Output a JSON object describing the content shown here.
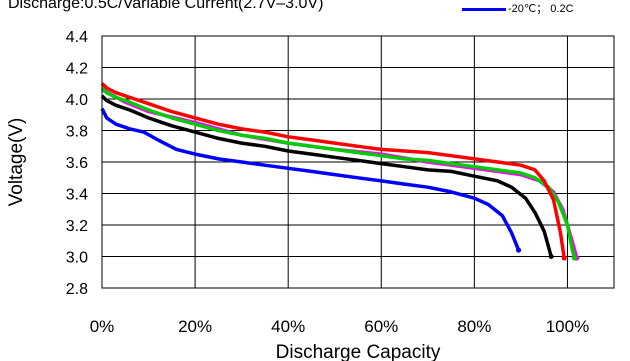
{
  "chart_data": {
    "type": "line",
    "title": "Discharge:0.5C/Variable Current(2.7V–3.0V)",
    "xlabel": "Discharge Capacity",
    "ylabel": "Voltage(V)",
    "xlim": [
      0,
      110
    ],
    "ylim": [
      2.8,
      4.4
    ],
    "x_ticks": [
      "0%",
      "20%",
      "40%",
      "60%",
      "80%",
      "100%"
    ],
    "y_ticks": [
      "2.8",
      "3.0",
      "3.2",
      "3.4",
      "3.6",
      "3.8",
      "4.0",
      "4.2",
      "4.4"
    ],
    "grid": true,
    "legend": {
      "position": "top-right",
      "entries": [
        {
          "label": "-20℃； 0.2C",
          "color": "#0000ff"
        }
      ]
    },
    "series": [
      {
        "color": "#0000ff",
        "points": [
          [
            0,
            3.94
          ],
          [
            1,
            3.88
          ],
          [
            3,
            3.84
          ],
          [
            6,
            3.81
          ],
          [
            9,
            3.79
          ],
          [
            12,
            3.74
          ],
          [
            16,
            3.68
          ],
          [
            20,
            3.65
          ],
          [
            25,
            3.62
          ],
          [
            30,
            3.6
          ],
          [
            35,
            3.58
          ],
          [
            40,
            3.56
          ],
          [
            45,
            3.54
          ],
          [
            50,
            3.52
          ],
          [
            55,
            3.5
          ],
          [
            60,
            3.48
          ],
          [
            65,
            3.46
          ],
          [
            70,
            3.44
          ],
          [
            75,
            3.41
          ],
          [
            80,
            3.37
          ],
          [
            83,
            3.33
          ],
          [
            86,
            3.26
          ],
          [
            88,
            3.15
          ],
          [
            89.5,
            3.04
          ]
        ]
      },
      {
        "color": "#000000",
        "points": [
          [
            0,
            4.02
          ],
          [
            1,
            3.99
          ],
          [
            3,
            3.96
          ],
          [
            6,
            3.93
          ],
          [
            10,
            3.88
          ],
          [
            15,
            3.83
          ],
          [
            20,
            3.79
          ],
          [
            25,
            3.75
          ],
          [
            30,
            3.72
          ],
          [
            35,
            3.7
          ],
          [
            40,
            3.67
          ],
          [
            45,
            3.65
          ],
          [
            50,
            3.63
          ],
          [
            55,
            3.61
          ],
          [
            60,
            3.59
          ],
          [
            65,
            3.57
          ],
          [
            70,
            3.55
          ],
          [
            75,
            3.54
          ],
          [
            80,
            3.51
          ],
          [
            85,
            3.48
          ],
          [
            88,
            3.44
          ],
          [
            91,
            3.37
          ],
          [
            93,
            3.28
          ],
          [
            95,
            3.16
          ],
          [
            96.5,
            3.0
          ]
        ]
      },
      {
        "color": "#ff00ff",
        "points": [
          [
            0,
            4.06
          ],
          [
            5,
            3.98
          ],
          [
            10,
            3.92
          ],
          [
            20,
            3.85
          ],
          [
            30,
            3.77
          ],
          [
            40,
            3.72
          ],
          [
            50,
            3.68
          ],
          [
            60,
            3.65
          ],
          [
            70,
            3.6
          ],
          [
            80,
            3.56
          ],
          [
            90,
            3.52
          ],
          [
            94,
            3.48
          ],
          [
            97,
            3.41
          ],
          [
            99,
            3.3
          ],
          [
            101,
            3.1
          ],
          [
            102,
            2.99
          ]
        ]
      },
      {
        "color": "#00cc00",
        "points": [
          [
            0,
            4.07
          ],
          [
            1,
            4.04
          ],
          [
            3,
            4.01
          ],
          [
            6,
            3.98
          ],
          [
            10,
            3.93
          ],
          [
            15,
            3.88
          ],
          [
            20,
            3.84
          ],
          [
            25,
            3.8
          ],
          [
            30,
            3.77
          ],
          [
            35,
            3.75
          ],
          [
            40,
            3.72
          ],
          [
            45,
            3.7
          ],
          [
            50,
            3.68
          ],
          [
            55,
            3.66
          ],
          [
            60,
            3.64
          ],
          [
            65,
            3.62
          ],
          [
            70,
            3.61
          ],
          [
            75,
            3.59
          ],
          [
            80,
            3.57
          ],
          [
            85,
            3.55
          ],
          [
            90,
            3.53
          ],
          [
            93,
            3.5
          ],
          [
            96,
            3.44
          ],
          [
            98,
            3.35
          ],
          [
            100,
            3.2
          ],
          [
            101,
            3.05
          ],
          [
            101.5,
            2.99
          ]
        ]
      },
      {
        "color": "#ff0000",
        "points": [
          [
            0,
            4.1
          ],
          [
            1,
            4.07
          ],
          [
            3,
            4.04
          ],
          [
            6,
            4.01
          ],
          [
            10,
            3.97
          ],
          [
            15,
            3.92
          ],
          [
            20,
            3.88
          ],
          [
            25,
            3.84
          ],
          [
            30,
            3.81
          ],
          [
            35,
            3.79
          ],
          [
            40,
            3.76
          ],
          [
            45,
            3.74
          ],
          [
            50,
            3.72
          ],
          [
            55,
            3.7
          ],
          [
            60,
            3.68
          ],
          [
            65,
            3.67
          ],
          [
            70,
            3.66
          ],
          [
            75,
            3.64
          ],
          [
            80,
            3.62
          ],
          [
            85,
            3.6
          ],
          [
            90,
            3.58
          ],
          [
            93,
            3.55
          ],
          [
            95,
            3.48
          ],
          [
            97,
            3.36
          ],
          [
            98.5,
            3.15
          ],
          [
            99.3,
            2.99
          ]
        ]
      }
    ]
  }
}
